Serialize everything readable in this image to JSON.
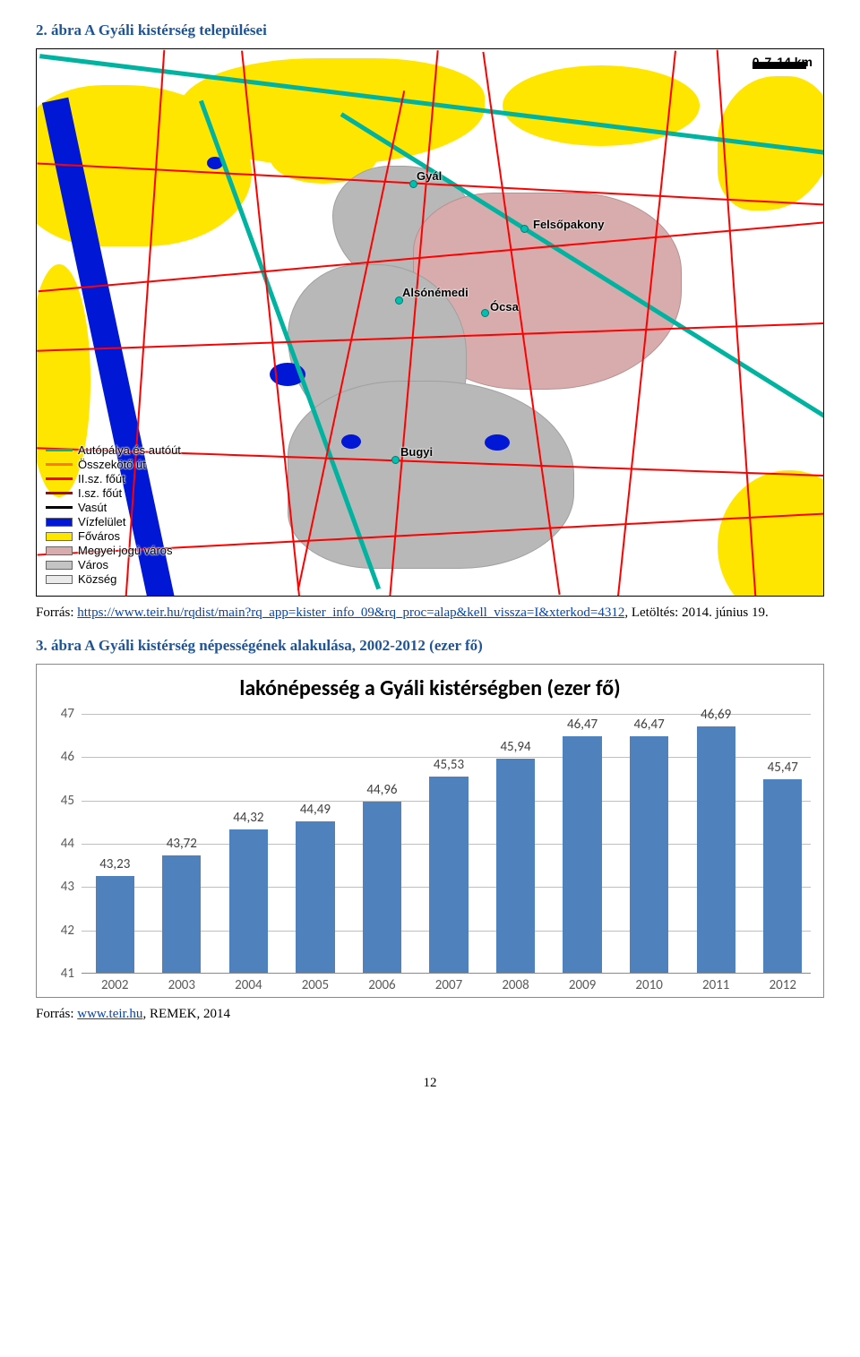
{
  "figure1": {
    "title": "2. ábra A Gyáli kistérség települései",
    "scale": {
      "ticks": [
        "0",
        "7",
        "14 km"
      ]
    },
    "settlement_labels": [
      "Gyál",
      "Felsőpakony",
      "Alsónémedi",
      "Ócsa",
      "Bugyi"
    ],
    "legend": [
      {
        "label": "Autópálya és autóút",
        "kind": "line",
        "color": "#00b3a0"
      },
      {
        "label": "Összekötő út",
        "kind": "line",
        "color": "#ff7b00"
      },
      {
        "label": "II.sz. főút",
        "kind": "line",
        "color": "#ff0000"
      },
      {
        "label": "I.sz. főút",
        "kind": "line",
        "color": "#b00000"
      },
      {
        "label": "Vasút",
        "kind": "line",
        "color": "#000000"
      },
      {
        "label": "Vízfelület",
        "kind": "swatch",
        "color": "#0018d6"
      },
      {
        "label": "Főváros",
        "kind": "swatch",
        "color": "#ffe600"
      },
      {
        "label": "Megyei jogú város",
        "kind": "swatch",
        "color": "#d8acac"
      },
      {
        "label": "Város",
        "kind": "swatch",
        "color": "#c4c4c4"
      },
      {
        "label": "Község",
        "kind": "swatch",
        "color": "#eaeaea"
      }
    ],
    "source_prefix": "Forrás: ",
    "source_url": "https://www.teir.hu/rqdist/main?rq_app=kister_info_09&rq_proc=alap&kell_vissza=I&xterkod=4312",
    "source_suffix": ", Letöltés: 2014. június 19."
  },
  "figure2": {
    "heading": "3. ábra A Gyáli kistérség népességének alakulása, 2002-2012 (ezer fő)",
    "chart": {
      "type": "bar",
      "title": "lakónépesség a Gyáli kistérségben (ezer fő)",
      "categories": [
        "2002",
        "2003",
        "2004",
        "2005",
        "2006",
        "2007",
        "2008",
        "2009",
        "2010",
        "2011",
        "2012"
      ],
      "values": [
        43.23,
        43.72,
        44.32,
        44.49,
        44.96,
        45.53,
        45.94,
        46.47,
        46.47,
        46.69,
        45.47
      ],
      "value_labels": [
        "43,23",
        "43,72",
        "44,32",
        "44,49",
        "44,96",
        "45,53",
        "45,94",
        "46,47",
        "46,47",
        "46,69",
        "45,47"
      ],
      "ylim": [
        41,
        47
      ],
      "ytick_step": 1,
      "yticks": [
        "41",
        "42",
        "43",
        "44",
        "45",
        "46",
        "47"
      ],
      "bar_color": "#4f81bd",
      "grid_color": "#bfbfbf",
      "background_color": "#ffffff",
      "bar_width_ratio": 0.58,
      "title_fontsize": 24,
      "label_fontsize": 15
    },
    "source_prefix": "Forrás: ",
    "source_link_text": "www.teir.hu",
    "source_suffix": ", REMEK, 2014"
  },
  "page_number": "12"
}
